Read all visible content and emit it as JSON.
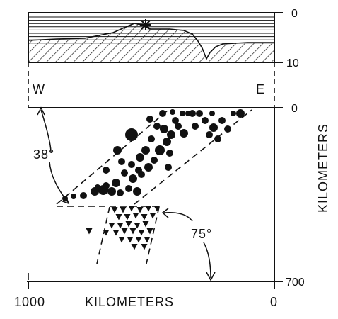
{
  "top_panel": {
    "depth_ticks": [
      "0",
      "10"
    ]
  },
  "orientation": {
    "west": "W",
    "east": "E"
  },
  "main_panel": {
    "depth_ticks": [
      "0",
      "700"
    ],
    "vertical_axis_label": "KILOMETERS",
    "horizontal_axis_label": "KILOMETERS",
    "distance_ticks": [
      "1000",
      "0"
    ],
    "angle_labels": [
      "38°",
      "75°"
    ]
  }
}
